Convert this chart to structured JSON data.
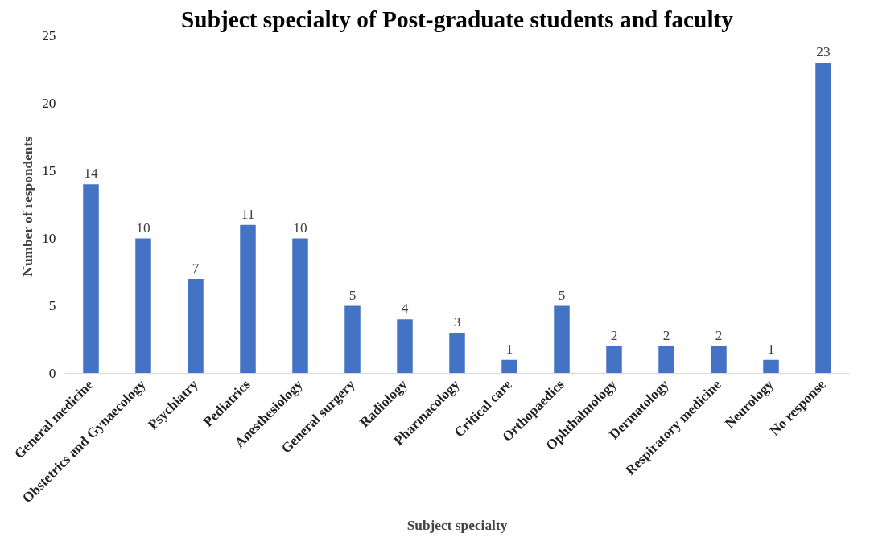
{
  "chart_data": {
    "type": "bar",
    "title": "Subject specialty of Post-graduate students and faculty",
    "xlabel": "Subject specialty",
    "ylabel": "Number  of respondents",
    "categories": [
      "General medicine",
      "Obstetrics and Gynaecology",
      "Psychiatry",
      "Pediatrics",
      "Anesthesiology",
      "General surgery",
      "Radiology",
      "Pharmacology",
      "Critical care",
      "Orthopaedics",
      "Ophthalmology",
      "Dermatology",
      "Respiratory medicine",
      "Neurology",
      "No response"
    ],
    "values": [
      14,
      10,
      7,
      11,
      10,
      5,
      4,
      3,
      1,
      5,
      2,
      2,
      2,
      1,
      23
    ],
    "color": "#4472c4",
    "ylim": [
      0,
      25
    ],
    "yticks": [
      0,
      5,
      10,
      15,
      20,
      25
    ],
    "grid": false,
    "data_labels": true
  }
}
